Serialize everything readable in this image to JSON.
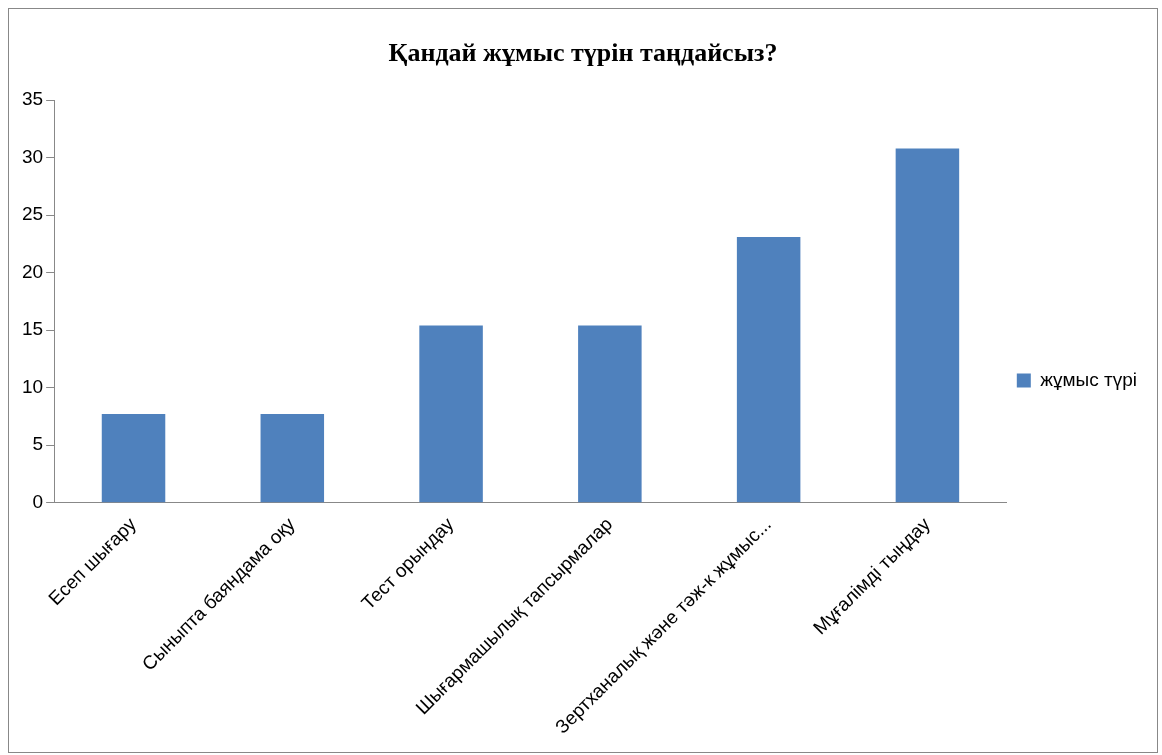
{
  "chart_data": {
    "type": "bar",
    "title": "Қандай жұмыс түрін таңдайсыз?",
    "categories": [
      "Есеп шығару",
      "Сыныпта баяндама оқу",
      "Тест орындау",
      "Шығармашылық тапсырмалар",
      "Зертханалық және тәж-к жұмыс...",
      "Мұғалімді тыңдау"
    ],
    "series": [
      {
        "name": "жұмыс түрі",
        "color": "#4f81bd",
        "values": [
          7.7,
          7.7,
          15.4,
          15.4,
          23.1,
          30.8
        ]
      }
    ],
    "ylim": [
      0,
      35
    ],
    "yticks": [
      0,
      5,
      10,
      15,
      20,
      25,
      30,
      35
    ],
    "grid": false,
    "legend": "right"
  }
}
